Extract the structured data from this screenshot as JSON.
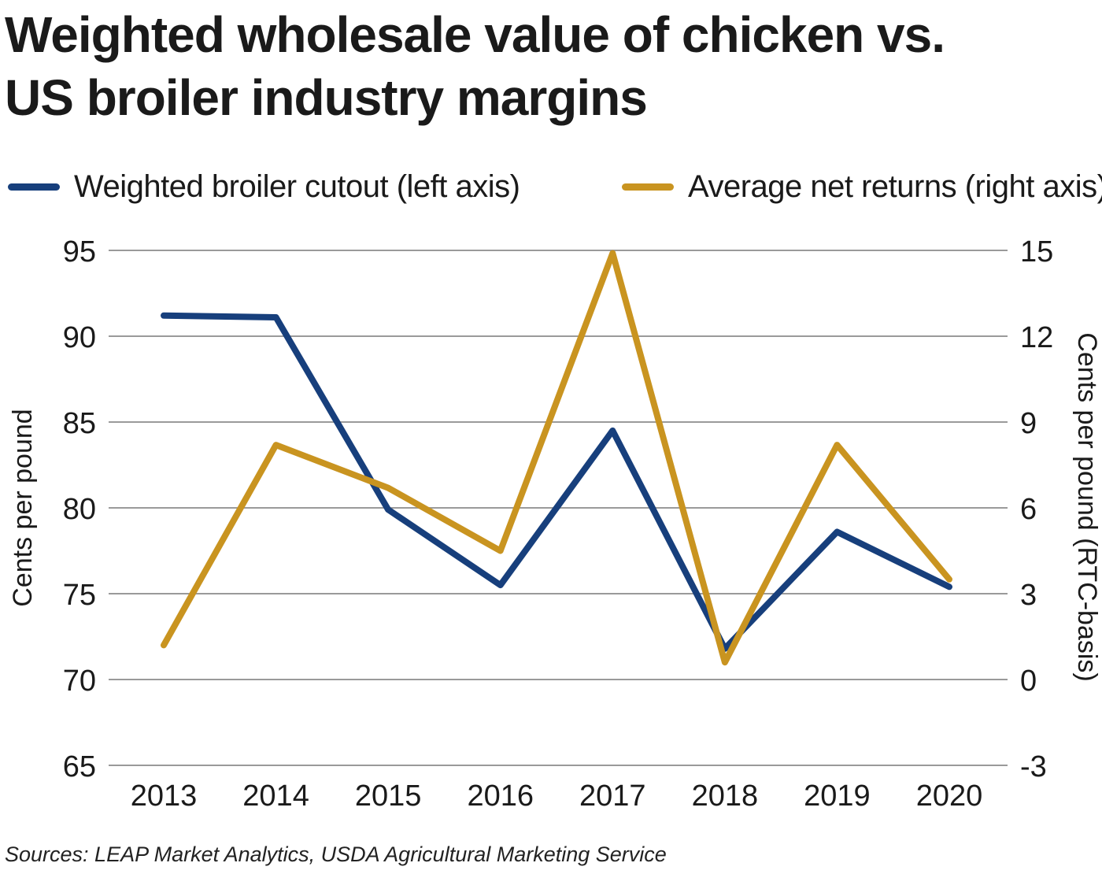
{
  "title_line1": "Weighted wholesale value of chicken vs.",
  "title_line2": "US broiler industry margins",
  "source": "Sources: LEAP Market Analytics, USDA Agricultural Marketing Service",
  "colors": {
    "cutout": "#173f7c",
    "returns": "#c99420",
    "grid": "#9a9a9a",
    "text": "#1a1a1a"
  },
  "chart_data": {
    "type": "line",
    "title": "Weighted wholesale value of chicken vs. US broiler industry margins",
    "categories": [
      "2013",
      "2014",
      "2015",
      "2016",
      "2017",
      "2018",
      "2019",
      "2020"
    ],
    "series": [
      {
        "name": "Weighted broiler cutout (left axis)",
        "axis": "left",
        "values": [
          91.2,
          91.1,
          79.9,
          75.5,
          84.5,
          71.8,
          78.6,
          75.4
        ]
      },
      {
        "name": "Average net returns (right axis)",
        "axis": "right",
        "values": [
          1.2,
          8.2,
          6.7,
          4.5,
          14.9,
          0.6,
          8.2,
          3.5
        ]
      }
    ],
    "left_axis": {
      "label": "Cents per pound",
      "ticks": [
        "95",
        "90",
        "85",
        "80",
        "75",
        "70",
        "65"
      ],
      "range": [
        65,
        95
      ]
    },
    "right_axis": {
      "label": "Cents per pound (RTC-basis)",
      "ticks": [
        "15",
        "12",
        "9",
        "6",
        "3",
        "0",
        "-3"
      ],
      "range": [
        -3,
        15
      ]
    },
    "grid": true,
    "legend_position": "top"
  }
}
